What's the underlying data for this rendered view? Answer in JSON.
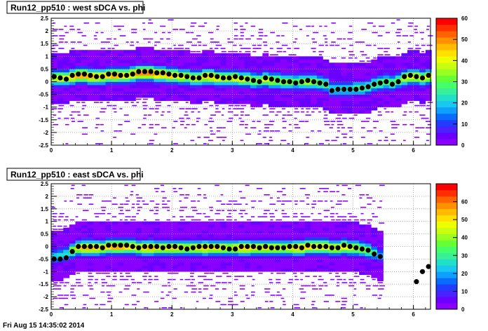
{
  "footer_text": "Fri Aug 15 14:35:02 2014",
  "colors": {
    "frame": "#000000",
    "grid": "#9a9a9a",
    "marker": "#000000",
    "title_bg": "#ffffff"
  },
  "palette": [
    "#8a00ff",
    "#6a00ff",
    "#4a22ff",
    "#1f3cff",
    "#0a6cff",
    "#0fa0ff",
    "#18c8f0",
    "#22e0c8",
    "#38f09a",
    "#44ff6a",
    "#66ff33",
    "#99ff22",
    "#c8ff10",
    "#eeff00",
    "#ffe000",
    "#ffbb00",
    "#ff9000",
    "#ff6200",
    "#ff3000",
    "#ff0000"
  ],
  "chart_data": [
    {
      "type": "heatmap",
      "title": "Run12_pp510 : west sDCA vs. phi",
      "xlim": [
        0,
        6.283
      ],
      "ylim": [
        -2.5,
        2.5
      ],
      "x_ticks": [
        "0",
        "1",
        "2",
        "3",
        "4",
        "5",
        "6"
      ],
      "y_ticks": [
        "-2.5",
        "-2",
        "-1.5",
        "-1",
        "-0.5",
        "0",
        "0.5",
        "1",
        "1.5",
        "2",
        "2.5"
      ],
      "z_range": [
        0,
        60
      ],
      "z_ticks": [
        "0",
        "10",
        "20",
        "30",
        "40",
        "50",
        "60"
      ],
      "grid": true,
      "profile_x": [
        0.05,
        0.15,
        0.25,
        0.35,
        0.45,
        0.55,
        0.65,
        0.75,
        0.85,
        0.95,
        1.05,
        1.15,
        1.25,
        1.35,
        1.45,
        1.55,
        1.65,
        1.75,
        1.85,
        1.95,
        2.05,
        2.15,
        2.25,
        2.35,
        2.45,
        2.55,
        2.65,
        2.75,
        2.85,
        2.95,
        3.05,
        3.15,
        3.25,
        3.35,
        3.45,
        3.55,
        3.65,
        3.75,
        3.85,
        3.95,
        4.05,
        4.15,
        4.25,
        4.35,
        4.45,
        4.55,
        4.65,
        4.75,
        4.85,
        4.95,
        5.05,
        5.15,
        5.25,
        5.35,
        5.45,
        5.55,
        5.65,
        5.75,
        5.85,
        5.95,
        6.05,
        6.15,
        6.25
      ],
      "profile_y": [
        0.2,
        0.15,
        0.1,
        0.25,
        0.3,
        0.3,
        0.25,
        0.2,
        0.2,
        0.3,
        0.3,
        0.25,
        0.25,
        0.3,
        0.4,
        0.4,
        0.4,
        0.35,
        0.35,
        0.3,
        0.25,
        0.25,
        0.2,
        0.15,
        0.15,
        0.25,
        0.25,
        0.2,
        0.15,
        0.15,
        0.2,
        0.15,
        0.1,
        0.05,
        0.0,
        0.15,
        0.1,
        0.05,
        0.0,
        0.0,
        -0.05,
        0.0,
        0.05,
        0.0,
        -0.05,
        -0.1,
        -0.35,
        -0.3,
        -0.3,
        -0.3,
        -0.3,
        -0.25,
        -0.2,
        -0.1,
        -0.05,
        0.0,
        -0.1,
        0.0,
        0.2,
        0.25,
        0.2,
        0.15,
        0.25
      ],
      "band_center": [
        0.15,
        0.15,
        0.15,
        0.2,
        0.25,
        0.25,
        0.2,
        0.2,
        0.2,
        0.25,
        0.25,
        0.25,
        0.25,
        0.3,
        0.35,
        0.35,
        0.35,
        0.3,
        0.3,
        0.25,
        0.25,
        0.2,
        0.2,
        0.15,
        0.15,
        0.2,
        0.2,
        0.15,
        0.15,
        0.15,
        0.15,
        0.1,
        0.1,
        0.05,
        0.05,
        0.1,
        0.05,
        0.05,
        0.0,
        0.0,
        0.0,
        0.0,
        0.0,
        0.0,
        -0.05,
        -0.1,
        -0.3,
        -0.3,
        -0.3,
        -0.3,
        -0.25,
        -0.25,
        -0.2,
        -0.1,
        -0.05,
        0.0,
        -0.05,
        0.05,
        0.15,
        0.2,
        0.2,
        0.15,
        0.2
      ],
      "band_peak": [
        38,
        42,
        40,
        45,
        48,
        50,
        48,
        45,
        44,
        46,
        48,
        45,
        44,
        46,
        50,
        52,
        50,
        48,
        46,
        45,
        44,
        42,
        40,
        40,
        40,
        44,
        45,
        42,
        40,
        40,
        42,
        40,
        38,
        36,
        34,
        40,
        38,
        36,
        34,
        32,
        30,
        34,
        36,
        32,
        30,
        28,
        22,
        24,
        24,
        24,
        26,
        26,
        26,
        28,
        30,
        30,
        30,
        32,
        38,
        42,
        42,
        40,
        42
      ],
      "rows": 40
    },
    {
      "type": "heatmap",
      "title": "Run12_pp510 : east sDCA vs. phi",
      "xlim": [
        0,
        6.283
      ],
      "ylim": [
        -2.5,
        2.5
      ],
      "x_ticks": [
        "0",
        "1",
        "2",
        "3",
        "4",
        "5",
        "6"
      ],
      "y_ticks": [
        "-2.5",
        "-2",
        "-1.5",
        "-1",
        "-0.5",
        "0",
        "0.5",
        "1",
        "1.5",
        "2",
        "2.5"
      ],
      "z_range": [
        0,
        70
      ],
      "z_ticks": [
        "0",
        "10",
        "20",
        "30",
        "40",
        "50",
        "60"
      ],
      "grid": true,
      "profile_x": [
        0.05,
        0.15,
        0.25,
        0.35,
        0.45,
        0.55,
        0.65,
        0.75,
        0.85,
        0.95,
        1.05,
        1.15,
        1.25,
        1.35,
        1.45,
        1.55,
        1.65,
        1.75,
        1.85,
        1.95,
        2.05,
        2.15,
        2.25,
        2.35,
        2.45,
        2.55,
        2.65,
        2.75,
        2.85,
        2.95,
        3.05,
        3.15,
        3.25,
        3.35,
        3.45,
        3.55,
        3.65,
        3.75,
        3.85,
        3.95,
        4.05,
        4.15,
        4.25,
        4.35,
        4.45,
        4.55,
        4.65,
        4.75,
        4.85,
        4.95,
        5.05,
        5.15,
        5.25,
        5.35,
        5.45,
        6.05,
        6.15,
        6.25
      ],
      "profile_y": [
        -0.5,
        -0.5,
        -0.45,
        -0.2,
        0.0,
        0.0,
        0.0,
        0.0,
        -0.05,
        0.05,
        0.05,
        0.05,
        0.05,
        0.0,
        -0.05,
        0.0,
        0.0,
        0.0,
        -0.05,
        0.0,
        0.0,
        -0.05,
        -0.1,
        -0.05,
        0.0,
        0.0,
        0.0,
        0.0,
        -0.05,
        -0.1,
        -0.1,
        0.0,
        0.0,
        0.0,
        -0.05,
        0.0,
        -0.05,
        -0.05,
        -0.05,
        0.0,
        0.0,
        -0.05,
        0.05,
        0.0,
        0.0,
        0.0,
        -0.05,
        -0.05,
        0.05,
        0.0,
        -0.05,
        -0.1,
        -0.15,
        -0.3,
        -0.4,
        -1.4,
        -1.0,
        -0.8
      ],
      "band_center": [
        -0.4,
        -0.35,
        -0.3,
        -0.15,
        -0.05,
        -0.05,
        -0.05,
        -0.05,
        -0.05,
        0.0,
        0.0,
        0.0,
        0.0,
        0.0,
        -0.05,
        -0.05,
        -0.05,
        -0.05,
        -0.05,
        -0.05,
        -0.05,
        -0.05,
        -0.05,
        -0.05,
        -0.05,
        -0.05,
        -0.05,
        -0.05,
        -0.05,
        -0.05,
        -0.05,
        -0.05,
        -0.05,
        -0.05,
        -0.05,
        -0.05,
        -0.05,
        -0.05,
        -0.05,
        -0.05,
        -0.05,
        -0.05,
        0.0,
        0.0,
        0.0,
        0.0,
        -0.05,
        -0.05,
        0.0,
        -0.05,
        -0.05,
        -0.1,
        -0.15,
        -0.25,
        -0.35
      ],
      "band_peak": [
        24,
        26,
        28,
        40,
        50,
        54,
        54,
        52,
        50,
        54,
        58,
        56,
        54,
        50,
        48,
        52,
        54,
        50,
        48,
        50,
        50,
        48,
        46,
        48,
        50,
        52,
        50,
        50,
        48,
        46,
        48,
        52,
        52,
        50,
        48,
        50,
        50,
        48,
        46,
        48,
        52,
        52,
        54,
        52,
        50,
        50,
        48,
        48,
        50,
        46,
        44,
        40,
        38,
        30,
        20
      ],
      "rows": 40
    }
  ]
}
